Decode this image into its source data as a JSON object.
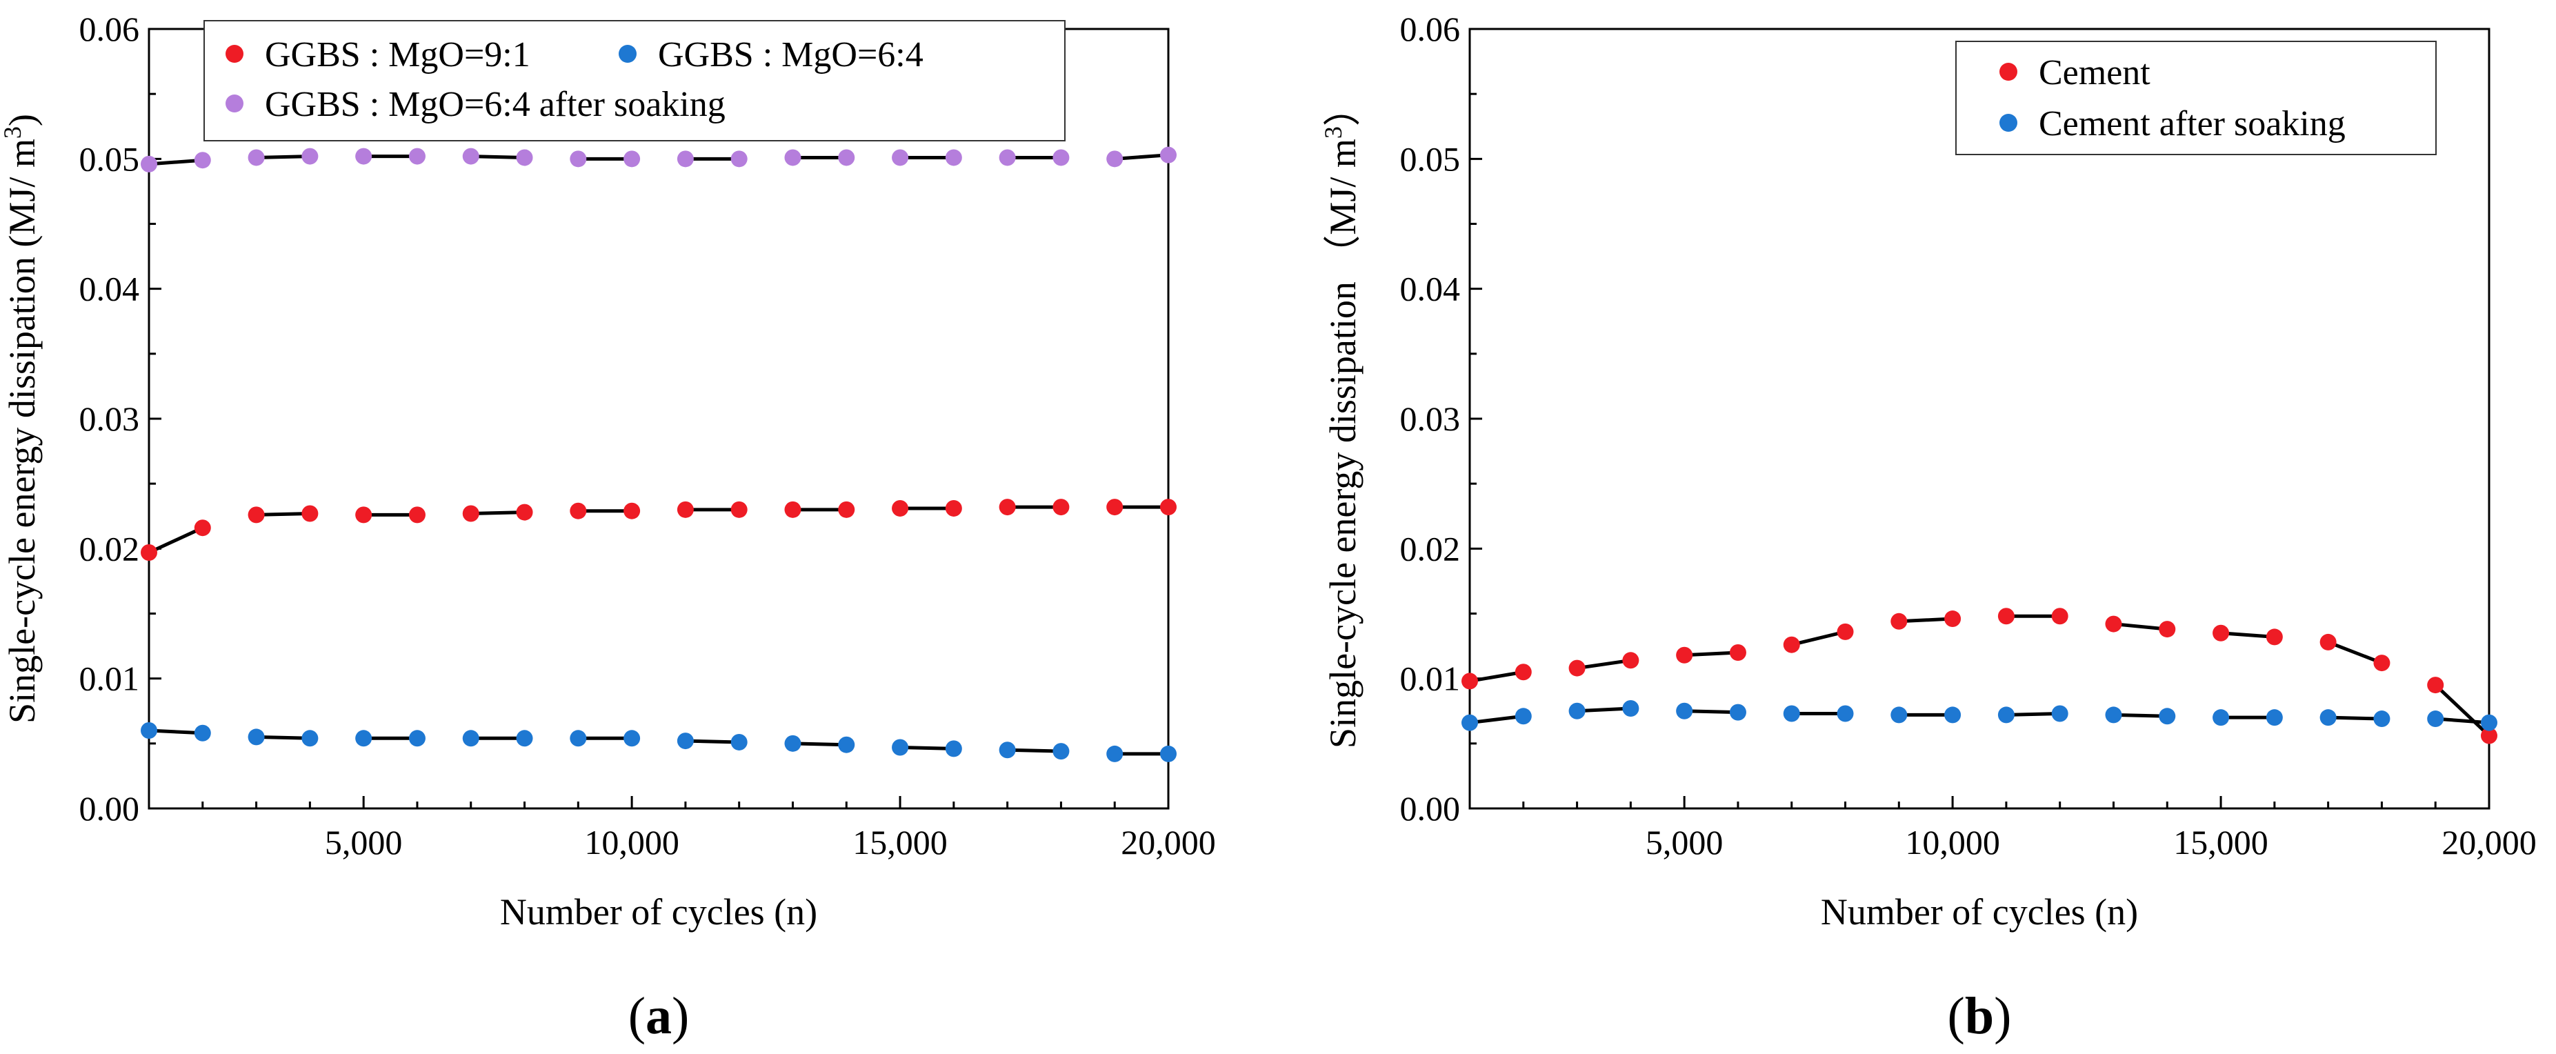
{
  "figure": {
    "panels": [
      "a",
      "b"
    ]
  },
  "chart_data": [
    {
      "id": "a",
      "type": "scatter",
      "panel_label": "a",
      "xlabel": "Number of cycles (n)",
      "ylabel": "Single-cycle energy dissipation (MJ/ m3)",
      "ylabel_main": "Single-cycle energy dissipation (MJ/ m",
      "ylabel_sup": "3",
      "ylabel_end": ")",
      "xlim": [
        1000,
        20000
      ],
      "ylim": [
        0,
        0.06
      ],
      "xticks": [
        5000,
        10000,
        15000,
        20000
      ],
      "xtick_labels": [
        "5,000",
        "10,000",
        "15,000",
        "20,000"
      ],
      "yticks": [
        0,
        0.01,
        0.02,
        0.03,
        0.04,
        0.05,
        0.06
      ],
      "ytick_labels": [
        "0.00",
        "0.01",
        "0.02",
        "0.03",
        "0.04",
        "0.05",
        "0.06"
      ],
      "legend_position": "top-left",
      "legend_layout": [
        [
          "s1",
          "s2"
        ],
        [
          "s3"
        ]
      ],
      "x": [
        1000,
        2000,
        3000,
        4000,
        5000,
        6000,
        7000,
        8000,
        9000,
        10000,
        11000,
        12000,
        13000,
        14000,
        15000,
        16000,
        17000,
        18000,
        19000,
        20000
      ],
      "series": [
        {
          "key": "s1",
          "name": "GGBS : MgO=9:1",
          "color": "#ee1c25",
          "values": [
            0.0197,
            0.0216,
            0.0226,
            0.0227,
            0.0226,
            0.0226,
            0.0227,
            0.0228,
            0.0229,
            0.0229,
            0.023,
            0.023,
            0.023,
            0.023,
            0.0231,
            0.0231,
            0.0232,
            0.0232,
            0.0232,
            0.0232
          ]
        },
        {
          "key": "s2",
          "name": "GGBS : MgO=6:4",
          "color": "#1e78d2",
          "values": [
            0.006,
            0.0058,
            0.0055,
            0.0054,
            0.0054,
            0.0054,
            0.0054,
            0.0054,
            0.0054,
            0.0054,
            0.0052,
            0.0051,
            0.005,
            0.0049,
            0.0047,
            0.0046,
            0.0045,
            0.0044,
            0.0042,
            0.0042
          ]
        },
        {
          "key": "s3",
          "name": "GGBS : MgO=6:4 after soaking",
          "color": "#b57edc",
          "values": [
            0.0496,
            0.0499,
            0.0501,
            0.0502,
            0.0502,
            0.0502,
            0.0502,
            0.0501,
            0.05,
            0.05,
            0.05,
            0.05,
            0.0501,
            0.0501,
            0.0501,
            0.0501,
            0.0501,
            0.0501,
            0.05,
            0.0503
          ]
        }
      ]
    },
    {
      "id": "b",
      "type": "scatter",
      "panel_label": "b",
      "xlabel": "Number of cycles (n)",
      "ylabel": "Single-cycle energy dissipation （MJ/ m3）",
      "ylabel_main": "Single-cycle energy dissipation （MJ/ m",
      "ylabel_sup": "3",
      "ylabel_end": "）",
      "xlim": [
        1000,
        20000
      ],
      "ylim": [
        0,
        0.06
      ],
      "xticks": [
        5000,
        10000,
        15000,
        20000
      ],
      "xtick_labels": [
        "5,000",
        "10,000",
        "15,000",
        "20,000"
      ],
      "yticks": [
        0,
        0.01,
        0.02,
        0.03,
        0.04,
        0.05,
        0.06
      ],
      "ytick_labels": [
        "0.00",
        "0.01",
        "0.02",
        "0.03",
        "0.04",
        "0.05",
        "0.06"
      ],
      "legend_position": "top-right",
      "legend_layout": [
        [
          "s1"
        ],
        [
          "s2"
        ]
      ],
      "x": [
        1000,
        2000,
        3000,
        4000,
        5000,
        6000,
        7000,
        8000,
        9000,
        10000,
        11000,
        12000,
        13000,
        14000,
        15000,
        16000,
        17000,
        18000,
        19000,
        20000
      ],
      "series": [
        {
          "key": "s1",
          "name": "Cement",
          "color": "#ee1c25",
          "values": [
            0.0098,
            0.0105,
            0.0108,
            0.0114,
            0.0118,
            0.012,
            0.0126,
            0.0136,
            0.0144,
            0.0146,
            0.0148,
            0.0148,
            0.0142,
            0.0138,
            0.0135,
            0.0132,
            0.0128,
            0.0112,
            0.0095,
            0.0056
          ]
        },
        {
          "key": "s2",
          "name": "Cement after soaking",
          "color": "#1e78d2",
          "values": [
            0.0066,
            0.0071,
            0.0075,
            0.0077,
            0.0075,
            0.0074,
            0.0073,
            0.0073,
            0.0072,
            0.0072,
            0.0072,
            0.0073,
            0.0072,
            0.0071,
            0.007,
            0.007,
            0.007,
            0.0069,
            0.0069,
            0.0066
          ]
        }
      ]
    }
  ]
}
